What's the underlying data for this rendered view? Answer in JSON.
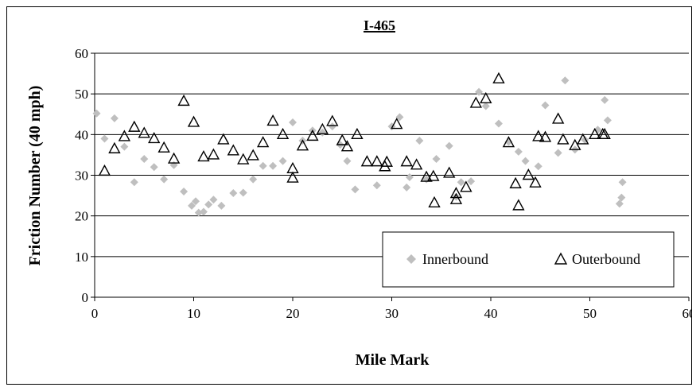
{
  "chart_data": {
    "type": "scatter",
    "title": "I-465",
    "xlabel": "Mile Mark",
    "ylabel": "Friction Number (40 mph)",
    "xlim": [
      0,
      60
    ],
    "ylim": [
      0,
      60
    ],
    "xticks": [
      0,
      10,
      20,
      30,
      40,
      50,
      60
    ],
    "yticks": [
      0,
      10,
      20,
      30,
      40,
      50,
      60
    ],
    "grid": "horizontal",
    "legend_position": "bottom-right",
    "colors": {
      "innerbound": "#bfbfbf",
      "outerbound": "#000000"
    },
    "series": [
      {
        "name": "Innerbound",
        "marker": "diamond",
        "points": [
          [
            0.2,
            45.2
          ],
          [
            1.0,
            39.0
          ],
          [
            2.0,
            44.0
          ],
          [
            3.0,
            37.0
          ],
          [
            4.0,
            28.3
          ],
          [
            5.0,
            34.0
          ],
          [
            6.0,
            32.0
          ],
          [
            7.0,
            29.0
          ],
          [
            8.0,
            32.5
          ],
          [
            9.0,
            26.0
          ],
          [
            9.8,
            22.5
          ],
          [
            10.2,
            23.6
          ],
          [
            10.5,
            20.8
          ],
          [
            11.0,
            21.0
          ],
          [
            11.5,
            22.8
          ],
          [
            12.0,
            24.0
          ],
          [
            12.8,
            22.5
          ],
          [
            14.0,
            25.6
          ],
          [
            15.0,
            25.7
          ],
          [
            16.0,
            29.0
          ],
          [
            17.0,
            32.3
          ],
          [
            18.0,
            32.3
          ],
          [
            19.0,
            33.5
          ],
          [
            20.0,
            43.0
          ],
          [
            21.0,
            38.5
          ],
          [
            22.0,
            41.0
          ],
          [
            23.0,
            40.5
          ],
          [
            24.0,
            42.0
          ],
          [
            24.8,
            37.5
          ],
          [
            25.5,
            33.5
          ],
          [
            26.3,
            26.5
          ],
          [
            28.5,
            27.5
          ],
          [
            30.0,
            42.0
          ],
          [
            30.8,
            44.3
          ],
          [
            31.5,
            27.0
          ],
          [
            31.8,
            29.5
          ],
          [
            32.8,
            38.5
          ],
          [
            33.5,
            29.0
          ],
          [
            34.5,
            34.0
          ],
          [
            35.8,
            37.2
          ],
          [
            36.5,
            24.7
          ],
          [
            37.0,
            28.3
          ],
          [
            38.0,
            28.5
          ],
          [
            38.8,
            50.5
          ],
          [
            39.5,
            47.0
          ],
          [
            40.8,
            42.7
          ],
          [
            41.8,
            38.2
          ],
          [
            42.8,
            35.8
          ],
          [
            43.5,
            33.5
          ],
          [
            44.8,
            32.2
          ],
          [
            45.5,
            47.2
          ],
          [
            46.8,
            35.5
          ],
          [
            47.5,
            53.3
          ],
          [
            48.5,
            36.3
          ],
          [
            49.5,
            38.7
          ],
          [
            50.8,
            41.2
          ],
          [
            51.8,
            43.5
          ],
          [
            51.5,
            48.5
          ],
          [
            53.0,
            23.0
          ],
          [
            53.2,
            24.5
          ],
          [
            53.3,
            28.3
          ]
        ]
      },
      {
        "name": "Outerbound",
        "marker": "triangle",
        "points": [
          [
            1.0,
            31.0
          ],
          [
            2.0,
            36.5
          ],
          [
            3.0,
            39.5
          ],
          [
            4.0,
            41.8
          ],
          [
            5.0,
            40.3
          ],
          [
            6.0,
            39.0
          ],
          [
            7.0,
            36.7
          ],
          [
            8.0,
            34.0
          ],
          [
            9.0,
            48.2
          ],
          [
            10.0,
            43.0
          ],
          [
            11.0,
            34.5
          ],
          [
            12.0,
            35.0
          ],
          [
            13.0,
            38.7
          ],
          [
            14.0,
            36.0
          ],
          [
            15.0,
            33.8
          ],
          [
            16.0,
            34.8
          ],
          [
            17.0,
            38.0
          ],
          [
            18.0,
            43.3
          ],
          [
            19.0,
            40.0
          ],
          [
            20.0,
            31.6
          ],
          [
            20.0,
            29.3
          ],
          [
            21.0,
            37.2
          ],
          [
            22.0,
            39.6
          ],
          [
            23.0,
            41.2
          ],
          [
            24.0,
            43.2
          ],
          [
            25.0,
            38.5
          ],
          [
            25.5,
            37.0
          ],
          [
            26.5,
            40.0
          ],
          [
            27.5,
            33.3
          ],
          [
            28.5,
            33.3
          ],
          [
            29.3,
            32.1
          ],
          [
            29.5,
            33.2
          ],
          [
            30.5,
            42.5
          ],
          [
            31.5,
            33.3
          ],
          [
            32.5,
            32.5
          ],
          [
            33.5,
            29.5
          ],
          [
            34.2,
            29.7
          ],
          [
            34.3,
            23.2
          ],
          [
            35.8,
            30.5
          ],
          [
            36.5,
            25.5
          ],
          [
            36.5,
            24.0
          ],
          [
            37.5,
            27.0
          ],
          [
            38.5,
            47.7
          ],
          [
            39.5,
            48.8
          ],
          [
            40.8,
            53.7
          ],
          [
            41.8,
            38.0
          ],
          [
            42.5,
            27.9
          ],
          [
            42.8,
            22.5
          ],
          [
            43.8,
            30.0
          ],
          [
            44.5,
            28.1
          ],
          [
            44.8,
            39.5
          ],
          [
            45.5,
            39.3
          ],
          [
            46.8,
            43.8
          ],
          [
            47.3,
            38.7
          ],
          [
            48.5,
            37.3
          ],
          [
            49.3,
            38.7
          ],
          [
            50.5,
            40.0
          ],
          [
            51.3,
            40.0
          ],
          [
            51.5,
            40.0
          ]
        ]
      }
    ]
  }
}
